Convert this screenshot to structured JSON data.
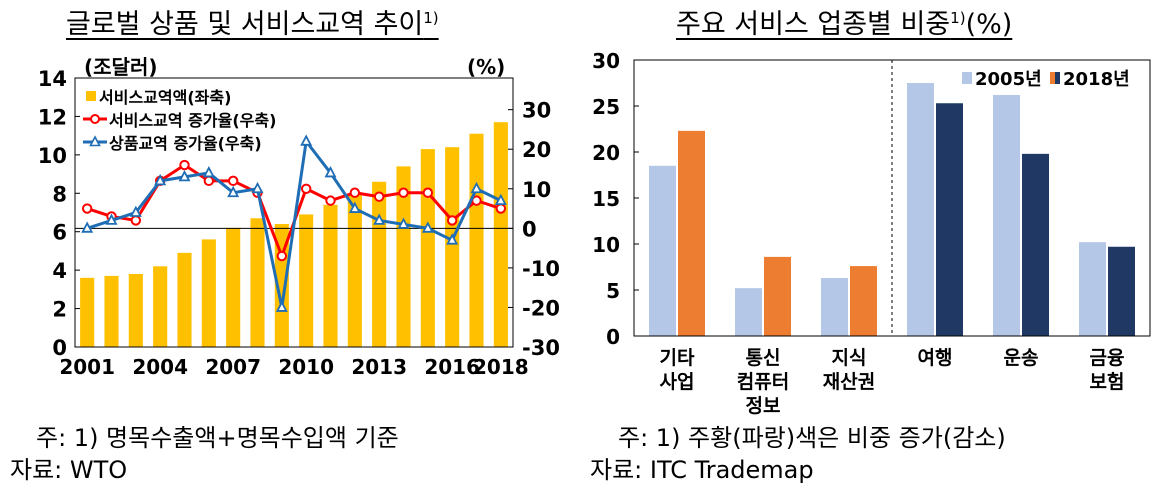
{
  "left": {
    "title": "글로벌 상품 및 서비스교역 추이",
    "title_sup": "1)",
    "note": "주: 1) 명목수출액+명목수입액 기준",
    "source": "자료: WTO"
  },
  "right": {
    "title": "주요 서비스 업종별 비중",
    "title_sup": "1)",
    "title_suffix": "(%)",
    "note": "주: 1) 주황(파랑)색은 비중 증가(감소)",
    "source": "자료: ITC Trademap"
  },
  "chart_data": [
    {
      "type": "bar+line",
      "title": "글로벌 상품 및 서비스교역 추이",
      "left_axis_unit": "(조달러)",
      "right_axis_unit": "(%)",
      "x": [
        2001,
        2002,
        2003,
        2004,
        2005,
        2006,
        2007,
        2008,
        2009,
        2010,
        2011,
        2012,
        2013,
        2014,
        2015,
        2016,
        2017,
        2018
      ],
      "x_tick_labels": [
        "2001",
        "2004",
        "2007",
        "2010",
        "2013",
        "2016",
        "2018"
      ],
      "ylim_left": [
        0,
        14
      ],
      "yticks_left": [
        0,
        2,
        4,
        6,
        8,
        10,
        12,
        14
      ],
      "ylim_right": [
        -30,
        38
      ],
      "yticks_right": [
        -30,
        -20,
        -10,
        0,
        10,
        20,
        30
      ],
      "grid": false,
      "legend_position": "top-left",
      "series": [
        {
          "name": "서비스교역액(좌축)",
          "type": "bar",
          "axis": "left",
          "color": "#FFC000",
          "values": [
            3.6,
            3.7,
            3.8,
            4.2,
            4.9,
            5.6,
            6.2,
            6.7,
            6.4,
            6.9,
            7.4,
            7.9,
            8.6,
            9.4,
            10.3,
            10.4,
            11.1,
            11.7
          ]
        },
        {
          "name": "서비스교역 증가율(우축)",
          "type": "line",
          "axis": "right",
          "color": "#FF0000",
          "marker": "circle",
          "values": [
            5,
            3,
            2,
            12,
            16,
            12,
            12,
            9,
            -7,
            10,
            7,
            9,
            8,
            9,
            9,
            2,
            7,
            5
          ]
        },
        {
          "name": "상품교역 증가율(우축)",
          "type": "line",
          "axis": "right",
          "color": "#1F6EB5",
          "marker": "triangle",
          "values": [
            0,
            2,
            4,
            12,
            13,
            14,
            9,
            10,
            -20,
            22,
            14,
            5,
            2,
            1,
            0,
            -3,
            10,
            7
          ]
        }
      ]
    },
    {
      "type": "bar",
      "title": "주요 서비스 업종별 비중",
      "categories": [
        [
          "기타",
          "사업"
        ],
        [
          "통신",
          "컴퓨터",
          "정보"
        ],
        [
          "지식",
          "재산권"
        ],
        [
          "여행"
        ],
        [
          "운송"
        ],
        [
          "금융",
          "보험"
        ]
      ],
      "ylim": [
        0,
        30
      ],
      "yticks": [
        0,
        5,
        10,
        15,
        20,
        25,
        30
      ],
      "grid": false,
      "legend_position": "top-right",
      "divider_after_index": 2,
      "series": [
        {
          "name": "2005년",
          "values": [
            18.5,
            5.2,
            6.3,
            27.5,
            26.2,
            10.2
          ],
          "color": "#B4C7E7"
        },
        {
          "name": "2018년",
          "values": [
            22.3,
            8.6,
            7.6,
            25.3,
            19.8,
            9.7
          ],
          "colors": [
            "#ED7D31",
            "#ED7D31",
            "#ED7D31",
            "#1F3864",
            "#1F3864",
            "#1F3864"
          ],
          "legend_color_left": "#ED7D31",
          "legend_color_right": "#1F3864"
        }
      ]
    }
  ]
}
